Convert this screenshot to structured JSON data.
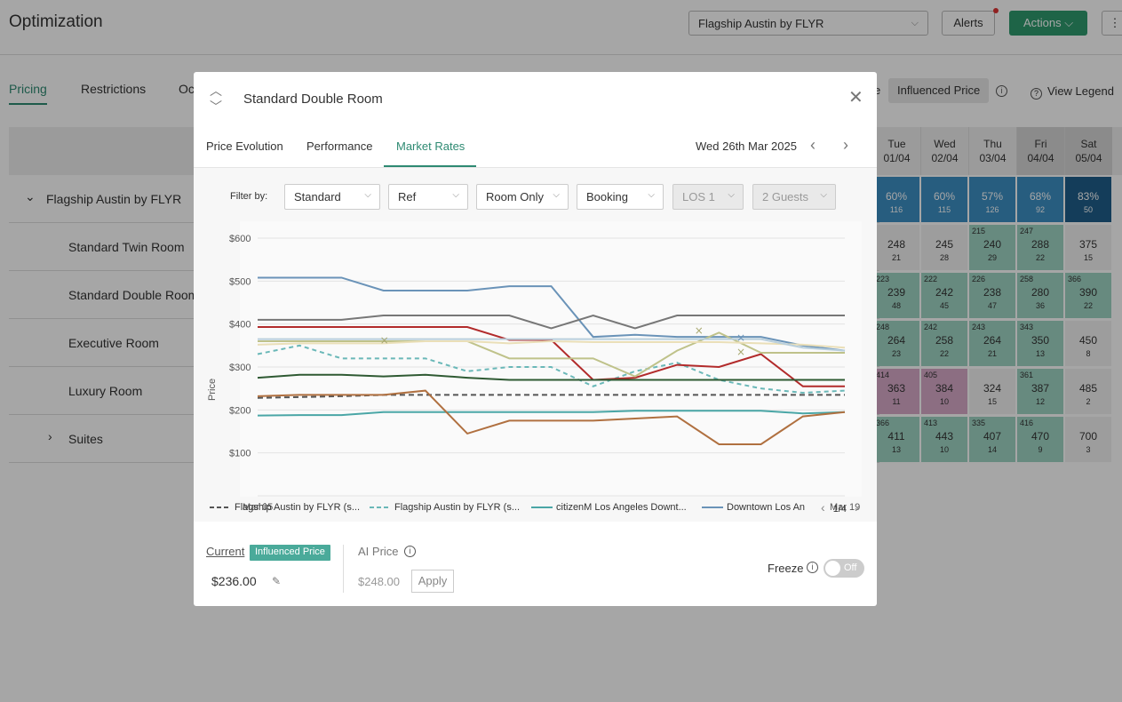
{
  "app": {
    "title": "Optimization",
    "property": "Flagship Austin by FLYR",
    "alerts_label": "Alerts",
    "actions_label": "Actions",
    "more_label": "⋮"
  },
  "main_tabs": [
    "Pricing",
    "Restrictions",
    "Oc"
  ],
  "toolbar": {
    "segment_prev": "e",
    "influenced_price": "Influenced Price",
    "view_legend": "View Legend"
  },
  "dates": [
    {
      "day": "Tue",
      "date": "01/04",
      "weekend": false
    },
    {
      "day": "Wed",
      "date": "02/04",
      "weekend": false
    },
    {
      "day": "Thu",
      "date": "03/04",
      "weekend": false
    },
    {
      "day": "Fri",
      "date": "04/04",
      "weekend": true
    },
    {
      "day": "Sat",
      "date": "05/04",
      "weekend": true
    }
  ],
  "rows": [
    {
      "label": "Flagship Austin by FLYR",
      "prefix": "⌄"
    },
    {
      "label": "Standard Twin Room",
      "prefix": ""
    },
    {
      "label": "Standard Double Room",
      "prefix": ""
    },
    {
      "label": "Executive Room",
      "prefix": ""
    },
    {
      "label": "Luxury Room",
      "prefix": ""
    },
    {
      "label": "Suites",
      "prefix": "›"
    }
  ],
  "cells": [
    [
      {
        "tl": "",
        "mid": "60%",
        "bot": "116",
        "color": "#3d8fc4"
      },
      {
        "tl": "",
        "mid": "60%",
        "bot": "115",
        "color": "#3d8fc4"
      },
      {
        "tl": "",
        "mid": "57%",
        "bot": "126",
        "color": "#3d8fc4"
      },
      {
        "tl": "",
        "mid": "68%",
        "bot": "92",
        "color": "#3d8fc4"
      },
      {
        "tl": "",
        "mid": "83%",
        "bot": "50",
        "color": "#1f5f8a"
      }
    ],
    [
      {
        "tl": "",
        "mid": "248",
        "bot": "21",
        "color": "#f2f2f2"
      },
      {
        "tl": "",
        "mid": "245",
        "bot": "28",
        "color": "#f2f2f2"
      },
      {
        "tl": "215",
        "mid": "240",
        "bot": "29",
        "color": "#9fd4c4"
      },
      {
        "tl": "247",
        "mid": "288",
        "bot": "22",
        "color": "#9fd4c4"
      },
      {
        "tl": "",
        "mid": "375",
        "bot": "15",
        "color": "#f2f2f2"
      }
    ],
    [
      {
        "tl": "223",
        "mid": "239",
        "bot": "48",
        "color": "#9fd4c4"
      },
      {
        "tl": "222",
        "mid": "242",
        "bot": "45",
        "color": "#9fd4c4"
      },
      {
        "tl": "226",
        "mid": "238",
        "bot": "47",
        "color": "#9fd4c4"
      },
      {
        "tl": "258",
        "mid": "280",
        "bot": "36",
        "color": "#9fd4c4"
      },
      {
        "tl": "366",
        "mid": "390",
        "bot": "22",
        "color": "#9fd4c4"
      }
    ],
    [
      {
        "tl": "248",
        "mid": "264",
        "bot": "23",
        "color": "#9fd4c4"
      },
      {
        "tl": "242",
        "mid": "258",
        "bot": "22",
        "color": "#9fd4c4"
      },
      {
        "tl": "243",
        "mid": "264",
        "bot": "21",
        "color": "#9fd4c4"
      },
      {
        "tl": "343",
        "mid": "350",
        "bot": "13",
        "color": "#9fd4c4"
      },
      {
        "tl": "",
        "mid": "450",
        "bot": "8",
        "color": "#f2f2f2"
      }
    ],
    [
      {
        "tl": "414",
        "mid": "363",
        "bot": "11",
        "color": "#d7a9c8"
      },
      {
        "tl": "405",
        "mid": "384",
        "bot": "10",
        "color": "#d7a9c8"
      },
      {
        "tl": "",
        "mid": "324",
        "bot": "15",
        "color": "#f2f2f2"
      },
      {
        "tl": "361",
        "mid": "387",
        "bot": "12",
        "color": "#9fd4c4"
      },
      {
        "tl": "",
        "mid": "485",
        "bot": "2",
        "color": "#f2f2f2"
      }
    ],
    [
      {
        "tl": "366",
        "mid": "411",
        "bot": "13",
        "color": "#9fd4c4"
      },
      {
        "tl": "413",
        "mid": "443",
        "bot": "10",
        "color": "#9fd4c4"
      },
      {
        "tl": "335",
        "mid": "407",
        "bot": "14",
        "color": "#9fd4c4"
      },
      {
        "tl": "416",
        "mid": "470",
        "bot": "9",
        "color": "#9fd4c4"
      },
      {
        "tl": "",
        "mid": "700",
        "bot": "3",
        "color": "#f2f2f2"
      }
    ]
  ],
  "modal": {
    "title": "Standard Double Room",
    "tabs": [
      "Price Evolution",
      "Performance",
      "Market Rates"
    ],
    "active_tab": "Market Rates",
    "date": "Wed 26th Mar 2025",
    "filter_label": "Filter by:",
    "filters": [
      {
        "value": "Standard",
        "disabled": false
      },
      {
        "value": "Ref",
        "disabled": false
      },
      {
        "value": "Room Only",
        "disabled": false
      },
      {
        "value": "Booking",
        "disabled": false
      },
      {
        "value": "LOS 1",
        "disabled": true
      },
      {
        "value": "2 Guests",
        "disabled": true
      }
    ],
    "legend": [
      {
        "label": "Flagship Austin by FLYR (s...",
        "color": "#555555",
        "dash": true
      },
      {
        "label": "Flagship Austin by FLYR (s...",
        "color": "#6ab8b8",
        "dash": true
      },
      {
        "label": "citizenM Los Angeles Downt...",
        "color": "#4aa6a6",
        "dash": false
      },
      {
        "label": "Downtown Los An",
        "color": "#6a93b8",
        "dash": false
      }
    ],
    "legend_page": "1/4",
    "footer": {
      "current_label": "Current",
      "badge": "Influenced Price",
      "current_price": "$236.00",
      "ai_label": "AI Price",
      "ai_price": "$248.00",
      "apply": "Apply",
      "freeze": "Freeze",
      "toggle": "Off"
    }
  },
  "chart_data": {
    "type": "line",
    "ylabel": "Price",
    "xlabel": "",
    "title": "",
    "x_tick_labels": [
      "Mar 05",
      "Mar 19"
    ],
    "y_ticks": [
      "$600",
      "$500",
      "$400",
      "$300",
      "$200",
      "$100"
    ],
    "ylim": [
      0,
      600
    ],
    "x": [
      5,
      6,
      7,
      8,
      9,
      10,
      11,
      12,
      13,
      14,
      15,
      16,
      17,
      18,
      19
    ],
    "series": [
      {
        "color": "#555555",
        "dash": "6,4",
        "values": [
          228,
          230,
          232,
          235,
          235,
          235,
          235,
          235,
          235,
          235,
          235,
          235,
          235,
          235,
          235
        ]
      },
      {
        "color": "#6ab8b8",
        "dash": "5,4",
        "values": [
          330,
          350,
          320,
          320,
          320,
          290,
          300,
          300,
          255,
          290,
          310,
          270,
          250,
          240,
          245
        ]
      },
      {
        "color": "#4aa6a6",
        "dash": "",
        "values": [
          187,
          188,
          188,
          195,
          195,
          195,
          195,
          195,
          195,
          198,
          198,
          198,
          198,
          192,
          195
        ]
      },
      {
        "color": "#6a93b8",
        "dash": "",
        "values": [
          508,
          508,
          508,
          478,
          478,
          478,
          488,
          488,
          370,
          375,
          370,
          370,
          370,
          350,
          338
        ]
      },
      {
        "color": "#777777",
        "dash": "",
        "values": [
          410,
          410,
          410,
          420,
          420,
          420,
          420,
          390,
          420,
          390,
          420,
          420,
          420,
          420,
          420
        ]
      },
      {
        "color": "#b22b2b",
        "dash": "",
        "values": [
          393,
          393,
          393,
          393,
          393,
          393,
          363,
          363,
          270,
          275,
          305,
          300,
          330,
          255,
          255
        ]
      },
      {
        "color": "#bfc28a",
        "dash": "",
        "values": [
          360,
          360,
          360,
          360,
          360,
          360,
          320,
          320,
          320,
          278,
          338,
          380,
          333,
          333,
          333
        ]
      },
      {
        "color": "#2f5a33",
        "dash": "",
        "values": [
          275,
          282,
          282,
          278,
          282,
          275,
          270,
          270,
          270,
          270,
          270,
          270,
          270,
          270,
          270
        ]
      },
      {
        "color": "#b07040",
        "dash": "",
        "values": [
          232,
          235,
          235,
          235,
          245,
          145,
          175,
          175,
          175,
          180,
          185,
          120,
          120,
          185,
          195
        ]
      },
      {
        "color": "#eadfb8",
        "dash": "",
        "values": [
          352,
          355,
          355,
          355,
          360,
          360,
          355,
          360,
          358,
          358,
          358,
          358,
          355,
          352,
          345
        ]
      },
      {
        "color": "#b9cfdc",
        "dash": "",
        "values": [
          365,
          365,
          365,
          365,
          365,
          365,
          365,
          365,
          365,
          365,
          365,
          365,
          365,
          345,
          338
        ]
      }
    ],
    "markers": [
      {
        "x": 8,
        "y": 362,
        "color": "#a8a870"
      },
      {
        "x": 15.5,
        "y": 385,
        "color": "#a8a870"
      },
      {
        "x": 16.5,
        "y": 368,
        "color": "#6a93b8"
      },
      {
        "x": 16.5,
        "y": 335,
        "color": "#a8a870"
      }
    ]
  }
}
